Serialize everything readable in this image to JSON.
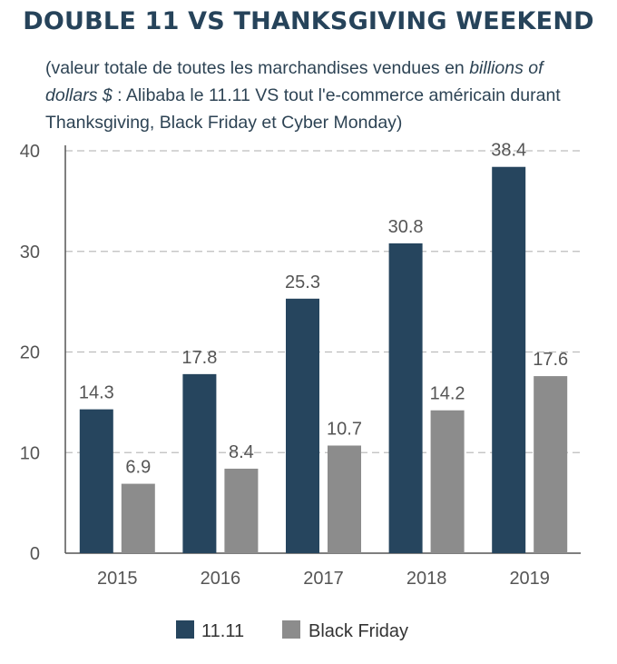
{
  "title": "DOUBLE 11 VS THANKSGIVING WEEKEND",
  "subtitle": {
    "part1": "(valeur totale de toutes les marchandises vendues en ",
    "italic": "billions of dollars $",
    "part2": " : Alibaba le 11.11 VS tout l'e-commerce américain durant Thanksgiving, Black Friday et Cyber Monday)"
  },
  "colors": {
    "series1": "#26455e",
    "series2": "#8c8c8c",
    "grid": "#bdbdbd",
    "axis": "#555555"
  },
  "chart_data": {
    "type": "bar",
    "categories": [
      "2015",
      "2016",
      "2017",
      "2018",
      "2019"
    ],
    "series": [
      {
        "name": "11.11",
        "values": [
          14.3,
          17.8,
          25.3,
          30.8,
          38.4
        ],
        "labels": [
          "14.3",
          "17.8",
          "25.3",
          "30.8",
          "38.4"
        ]
      },
      {
        "name": "Black Friday",
        "values": [
          6.9,
          8.4,
          10.7,
          14.2,
          17.6
        ],
        "labels": [
          "6.9",
          "8.4",
          "10.7",
          "14.2",
          "17.6"
        ]
      }
    ],
    "ylim": [
      0,
      40
    ],
    "yticks": [
      0,
      10,
      20,
      30,
      40
    ],
    "ytick_labels": [
      "0",
      "10",
      "20",
      "30",
      "40"
    ],
    "grid": true,
    "legend": "bottom"
  }
}
